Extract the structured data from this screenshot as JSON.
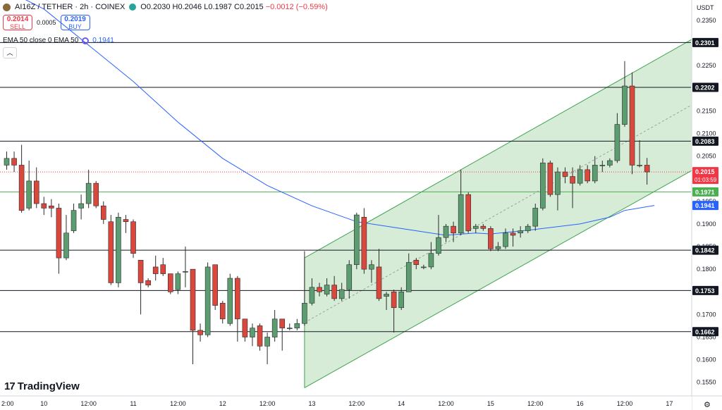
{
  "header": {
    "symbol": "AI16Z / TETHER · 2h · COINEX",
    "open": "O0.2030",
    "high": "H0.2046",
    "low": "L0.1987",
    "close": "C0.2015",
    "change": "−0.0012 (−0.59%)"
  },
  "trade": {
    "sell_price": "0.2014",
    "sell_label": "SELL",
    "spread": "0.0005",
    "buy_price": "0.2019",
    "buy_label": "BUY"
  },
  "indicator": {
    "label": "EMA 50 close 0 EMA 50",
    "value": "0.1941"
  },
  "brand": "TradingView",
  "currency": "USDT",
  "colors": {
    "up": "#5b9d70",
    "down": "#d9473d",
    "ema": "#2962ff",
    "channel": "#3fa34d",
    "channel_fill": "#c8e6c9"
  },
  "chart_data": {
    "type": "candlestick",
    "ylim": [
      0.152,
      0.2395
    ],
    "y_ticks": [
      "0.2350",
      "0.2300",
      "0.2250",
      "0.2200",
      "0.2150",
      "0.2100",
      "0.2050",
      "0.2000",
      "0.1950",
      "0.1900",
      "0.1850",
      "0.1800",
      "0.1750",
      "0.1700",
      "0.1650",
      "0.1600",
      "0.1550"
    ],
    "x_ticks": [
      {
        "label": "2:00",
        "bar": -1
      },
      {
        "label": "10",
        "bar": 5
      },
      {
        "label": "12:00",
        "bar": 11
      },
      {
        "label": "11",
        "bar": 17
      },
      {
        "label": "12:00",
        "bar": 23
      },
      {
        "label": "12",
        "bar": 29
      },
      {
        "label": "12:00",
        "bar": 35
      },
      {
        "label": "13",
        "bar": 41
      },
      {
        "label": "12:00",
        "bar": 47
      },
      {
        "label": "14",
        "bar": 53
      },
      {
        "label": "12:00",
        "bar": 59
      },
      {
        "label": "15",
        "bar": 65
      },
      {
        "label": "12:00",
        "bar": 71
      },
      {
        "label": "16",
        "bar": 77
      },
      {
        "label": "12:00",
        "bar": 83
      },
      {
        "label": "17",
        "bar": 89
      }
    ],
    "candles": [
      [
        0.203,
        0.2045,
        0.206,
        0.202
      ],
      [
        0.2045,
        0.203,
        0.206,
        0.2015
      ],
      [
        0.203,
        0.193,
        0.2075,
        0.1925
      ],
      [
        0.1935,
        0.1995,
        0.204,
        0.193
      ],
      [
        0.1995,
        0.1945,
        0.2025,
        0.1935
      ],
      [
        0.1945,
        0.1935,
        0.196,
        0.192
      ],
      [
        0.194,
        0.1935,
        0.1955,
        0.1915
      ],
      [
        0.1935,
        0.1825,
        0.1945,
        0.179
      ],
      [
        0.1825,
        0.188,
        0.192,
        0.182
      ],
      [
        0.1885,
        0.193,
        0.1945,
        0.188
      ],
      [
        0.1935,
        0.1945,
        0.1965,
        0.191
      ],
      [
        0.1945,
        0.199,
        0.202,
        0.1935
      ],
      [
        0.199,
        0.194,
        0.1995,
        0.1935
      ],
      [
        0.194,
        0.191,
        0.195,
        0.19
      ],
      [
        0.1905,
        0.177,
        0.192,
        0.1765
      ],
      [
        0.177,
        0.1915,
        0.1925,
        0.176
      ],
      [
        0.191,
        0.1905,
        0.192,
        0.188
      ],
      [
        0.1905,
        0.1835,
        0.191,
        0.1825
      ],
      [
        0.182,
        0.177,
        0.182,
        0.17
      ],
      [
        0.1775,
        0.1765,
        0.178,
        0.176
      ],
      [
        0.1805,
        0.179,
        0.183,
        0.1775
      ],
      [
        0.181,
        0.179,
        0.1825,
        0.1785
      ],
      [
        0.179,
        0.175,
        0.179,
        0.1745
      ],
      [
        0.1755,
        0.179,
        0.1795,
        0.1745
      ],
      [
        0.1795,
        0.1795,
        0.185,
        0.176
      ],
      [
        0.18,
        0.1665,
        0.18,
        0.159
      ],
      [
        0.1665,
        0.1655,
        0.168,
        0.164
      ],
      [
        0.1655,
        0.1805,
        0.1815,
        0.165
      ],
      [
        0.181,
        0.172,
        0.181,
        0.171
      ],
      [
        0.1725,
        0.169,
        0.173,
        0.168
      ],
      [
        0.168,
        0.178,
        0.179,
        0.1675
      ],
      [
        0.178,
        0.169,
        0.1785,
        0.164
      ],
      [
        0.169,
        0.165,
        0.169,
        0.164
      ],
      [
        0.165,
        0.167,
        0.168,
        0.163
      ],
      [
        0.1675,
        0.163,
        0.168,
        0.162
      ],
      [
        0.163,
        0.165,
        0.166,
        0.159
      ],
      [
        0.165,
        0.169,
        0.171,
        0.164
      ],
      [
        0.169,
        0.167,
        0.169,
        0.162
      ],
      [
        0.167,
        0.167,
        0.168,
        0.1665
      ],
      [
        0.167,
        0.168,
        0.169,
        0.1665
      ],
      [
        0.168,
        0.1725,
        0.184,
        0.1675
      ],
      [
        0.1725,
        0.176,
        0.178,
        0.172
      ],
      [
        0.176,
        0.175,
        0.177,
        0.174
      ],
      [
        0.1745,
        0.1765,
        0.178,
        0.174
      ],
      [
        0.1765,
        0.1735,
        0.1785,
        0.173
      ],
      [
        0.1735,
        0.1755,
        0.177,
        0.173
      ],
      [
        0.1755,
        0.181,
        0.182,
        0.1735
      ],
      [
        0.181,
        0.192,
        0.1925,
        0.18
      ],
      [
        0.1915,
        0.18,
        0.1935,
        0.179
      ],
      [
        0.18,
        0.181,
        0.182,
        0.177
      ],
      [
        0.1805,
        0.1735,
        0.1845,
        0.173
      ],
      [
        0.174,
        0.1745,
        0.175,
        0.171
      ],
      [
        0.175,
        0.1715,
        0.1755,
        0.166
      ],
      [
        0.1715,
        0.175,
        0.176,
        0.171
      ],
      [
        0.175,
        0.1815,
        0.1835,
        0.175
      ],
      [
        0.182,
        0.181,
        0.1825,
        0.18
      ],
      [
        0.1805,
        0.1805,
        0.181,
        0.18
      ],
      [
        0.1805,
        0.1835,
        0.186,
        0.18
      ],
      [
        0.1835,
        0.187,
        0.192,
        0.183
      ],
      [
        0.187,
        0.1895,
        0.19,
        0.186
      ],
      [
        0.1895,
        0.188,
        0.1905,
        0.186
      ],
      [
        0.188,
        0.1965,
        0.202,
        0.1875
      ],
      [
        0.1965,
        0.1885,
        0.197,
        0.188
      ],
      [
        0.189,
        0.1895,
        0.19,
        0.188
      ],
      [
        0.1895,
        0.189,
        0.19,
        0.1885
      ],
      [
        0.189,
        0.1845,
        0.1895,
        0.184
      ],
      [
        0.1845,
        0.185,
        0.186,
        0.184
      ],
      [
        0.185,
        0.188,
        0.189,
        0.1845
      ],
      [
        0.188,
        0.1875,
        0.189,
        0.185
      ],
      [
        0.188,
        0.1885,
        0.1895,
        0.187
      ],
      [
        0.1885,
        0.1895,
        0.19,
        0.188
      ],
      [
        0.1895,
        0.1935,
        0.1945,
        0.1885
      ],
      [
        0.1935,
        0.2035,
        0.2045,
        0.193
      ],
      [
        0.2035,
        0.1965,
        0.204,
        0.196
      ],
      [
        0.1965,
        0.2015,
        0.2025,
        0.193
      ],
      [
        0.2015,
        0.2005,
        0.2025,
        0.199
      ],
      [
        0.2005,
        0.199,
        0.2025,
        0.1935
      ],
      [
        0.199,
        0.202,
        0.203,
        0.1985
      ],
      [
        0.202,
        0.1995,
        0.203,
        0.199
      ],
      [
        0.1995,
        0.203,
        0.205,
        0.199
      ],
      [
        0.203,
        0.203,
        0.204,
        0.2015
      ],
      [
        0.203,
        0.204,
        0.2045,
        0.2025
      ],
      [
        0.204,
        0.212,
        0.2145,
        0.2035
      ],
      [
        0.212,
        0.2205,
        0.226,
        0.2115
      ],
      [
        0.2205,
        0.203,
        0.2235,
        0.201
      ],
      [
        0.203,
        0.203,
        0.2085,
        0.2025
      ],
      [
        0.203,
        0.2015,
        0.2046,
        0.1987
      ]
    ],
    "ema50": [
      [
        -1,
        0.2425
      ],
      [
        5,
        0.2375
      ],
      [
        11,
        0.2295
      ],
      [
        17,
        0.2215
      ],
      [
        23,
        0.2125
      ],
      [
        29,
        0.2045
      ],
      [
        35,
        0.1985
      ],
      [
        41,
        0.194
      ],
      [
        47,
        0.1905
      ],
      [
        53,
        0.189
      ],
      [
        59,
        0.1875
      ],
      [
        63,
        0.188
      ],
      [
        65,
        0.1878
      ],
      [
        71,
        0.1888
      ],
      [
        77,
        0.19
      ],
      [
        81,
        0.1915
      ],
      [
        83,
        0.193
      ],
      [
        87,
        0.1941
      ]
    ],
    "channel": {
      "upper": [
        [
          40,
          0.1825
        ],
        [
          96,
          0.2345
        ]
      ],
      "lower": [
        [
          40,
          0.1538
        ],
        [
          96,
          0.2055
        ]
      ],
      "mid": [
        [
          40,
          0.1682
        ],
        [
          96,
          0.22
        ]
      ],
      "band_edge": [
        [
          40,
          0.1825
        ],
        [
          40,
          0.1538
        ]
      ]
    },
    "horizontal_levels": [
      "0.2301",
      "0.2202",
      "0.2083",
      "0.1842",
      "0.1753",
      "0.1662"
    ],
    "green_level": "0.1971",
    "last_price": "0.2015",
    "countdown": "01:03:59",
    "ema_label": "0.1941"
  }
}
